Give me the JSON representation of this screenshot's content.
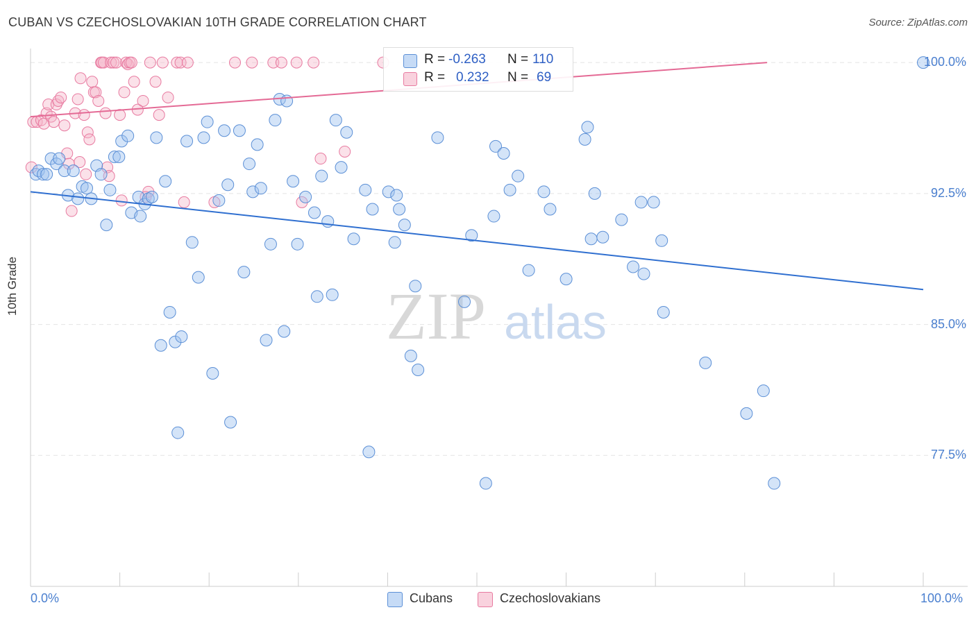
{
  "title": "CUBAN VS CZECHOSLOVAKIAN 10TH GRADE CORRELATION CHART",
  "source": "Source: ZipAtlas.com",
  "watermark": {
    "zip": "ZIP",
    "atlas": "atlas"
  },
  "colors": {
    "blue": "#5b8fd6",
    "blue_fill": "rgba(160,195,240,0.45)",
    "blue_line": "#2f6fd0",
    "pink": "#e87aa0",
    "pink_fill": "rgba(245,180,200,0.4)",
    "pink_line": "#e46a95"
  },
  "legend": {
    "blue": {
      "r_label": "R =",
      "r_value": "-0.263",
      "n_label": "N =",
      "n_value": "110"
    },
    "pink": {
      "r_label": "R =",
      "r_value": "0.232",
      "n_label": "N =",
      "n_value": "69"
    }
  },
  "bottom_legend": {
    "cubans": "Cubans",
    "czechoslovakians": "Czechoslovakians"
  },
  "chart_data": {
    "type": "scatter",
    "title": "CUBAN VS CZECHOSLOVAKIAN 10TH GRADE CORRELATION CHART",
    "xlabel": "",
    "ylabel": "10th Grade",
    "xlim": [
      0,
      100
    ],
    "ylim": [
      70.0,
      100.8
    ],
    "x_tick_labels": [
      "0.0%",
      "100.0%"
    ],
    "y_ticks": [
      77.5,
      85.0,
      92.5,
      100.0
    ],
    "y_tick_labels": [
      "77.5%",
      "85.0%",
      "92.5%",
      "100.0%"
    ],
    "series": [
      {
        "name": "Cubans",
        "trend": {
          "x": [
            0,
            100
          ],
          "y": [
            92.6,
            87.0
          ]
        },
        "points": [
          [
            0.6,
            93.6
          ],
          [
            0.9,
            93.8
          ],
          [
            1.4,
            93.6
          ],
          [
            1.8,
            93.6
          ],
          [
            2.3,
            94.5
          ],
          [
            2.9,
            94.2
          ],
          [
            3.2,
            94.5
          ],
          [
            3.8,
            93.8
          ],
          [
            4.2,
            92.4
          ],
          [
            4.8,
            93.8
          ],
          [
            5.3,
            92.2
          ],
          [
            5.8,
            92.9
          ],
          [
            6.3,
            92.8
          ],
          [
            6.8,
            92.2
          ],
          [
            7.4,
            94.1
          ],
          [
            7.9,
            93.6
          ],
          [
            8.5,
            90.7
          ],
          [
            8.9,
            92.7
          ],
          [
            9.4,
            94.6
          ],
          [
            9.9,
            94.6
          ],
          [
            10.2,
            95.5
          ],
          [
            10.9,
            95.8
          ],
          [
            11.3,
            91.4
          ],
          [
            12.1,
            92.3
          ],
          [
            12.3,
            91.2
          ],
          [
            12.8,
            91.9
          ],
          [
            13.2,
            92.2
          ],
          [
            13.6,
            92.3
          ],
          [
            14.1,
            95.7
          ],
          [
            14.6,
            83.8
          ],
          [
            15.1,
            93.2
          ],
          [
            15.6,
            85.7
          ],
          [
            16.2,
            84.0
          ],
          [
            16.5,
            78.8
          ],
          [
            16.9,
            84.3
          ],
          [
            17.5,
            95.5
          ],
          [
            18.1,
            89.7
          ],
          [
            18.8,
            87.7
          ],
          [
            19.4,
            95.7
          ],
          [
            19.8,
            96.6
          ],
          [
            20.4,
            82.2
          ],
          [
            21.1,
            92.1
          ],
          [
            21.7,
            96.1
          ],
          [
            22.1,
            93.0
          ],
          [
            22.4,
            79.4
          ],
          [
            23.4,
            96.1
          ],
          [
            23.9,
            88.0
          ],
          [
            24.5,
            94.2
          ],
          [
            24.9,
            92.6
          ],
          [
            25.4,
            95.3
          ],
          [
            25.8,
            92.8
          ],
          [
            26.4,
            84.1
          ],
          [
            26.9,
            89.6
          ],
          [
            27.4,
            96.7
          ],
          [
            27.9,
            97.9
          ],
          [
            28.4,
            84.6
          ],
          [
            28.7,
            97.8
          ],
          [
            29.4,
            93.2
          ],
          [
            29.9,
            89.6
          ],
          [
            30.8,
            92.3
          ],
          [
            31.8,
            91.4
          ],
          [
            32.1,
            86.6
          ],
          [
            32.6,
            93.5
          ],
          [
            33.3,
            90.9
          ],
          [
            33.8,
            86.7
          ],
          [
            34.2,
            96.7
          ],
          [
            34.8,
            94.0
          ],
          [
            35.4,
            96.0
          ],
          [
            36.2,
            89.9
          ],
          [
            37.5,
            92.7
          ],
          [
            37.9,
            77.7
          ],
          [
            38.3,
            91.6
          ],
          [
            40.1,
            92.6
          ],
          [
            40.8,
            89.7
          ],
          [
            41.0,
            92.4
          ],
          [
            41.3,
            91.6
          ],
          [
            41.9,
            90.7
          ],
          [
            42.6,
            83.2
          ],
          [
            43.1,
            87.2
          ],
          [
            43.4,
            82.4
          ],
          [
            45.6,
            95.7
          ],
          [
            48.6,
            86.3
          ],
          [
            49.4,
            90.1
          ],
          [
            51.0,
            75.9
          ],
          [
            51.9,
            91.2
          ],
          [
            52.1,
            95.2
          ],
          [
            53.0,
            94.8
          ],
          [
            53.7,
            92.7
          ],
          [
            54.6,
            93.5
          ],
          [
            55.8,
            88.1
          ],
          [
            57.5,
            92.6
          ],
          [
            58.2,
            91.6
          ],
          [
            60.0,
            87.6
          ],
          [
            62.1,
            95.6
          ],
          [
            62.4,
            96.3
          ],
          [
            62.8,
            89.9
          ],
          [
            63.2,
            92.5
          ],
          [
            64.1,
            90.0
          ],
          [
            66.2,
            91.0
          ],
          [
            67.5,
            88.3
          ],
          [
            68.4,
            92.0
          ],
          [
            68.7,
            87.9
          ],
          [
            69.8,
            92.0
          ],
          [
            70.7,
            89.8
          ],
          [
            70.9,
            85.7
          ],
          [
            75.6,
            82.8
          ],
          [
            80.2,
            79.9
          ],
          [
            82.1,
            81.2
          ],
          [
            83.3,
            75.9
          ],
          [
            100.0,
            100.0
          ]
        ]
      },
      {
        "name": "Czechoslovakians",
        "trend": {
          "x": [
            0,
            82.5
          ],
          "y": [
            96.9,
            100.0
          ]
        },
        "points": [
          [
            0.3,
            96.6
          ],
          [
            0.7,
            96.6
          ],
          [
            1.2,
            96.7
          ],
          [
            1.5,
            96.5
          ],
          [
            1.8,
            97.1
          ],
          [
            2.0,
            97.6
          ],
          [
            2.3,
            96.9
          ],
          [
            2.6,
            96.6
          ],
          [
            2.9,
            97.6
          ],
          [
            3.1,
            97.8
          ],
          [
            3.4,
            98.0
          ],
          [
            3.8,
            96.4
          ],
          [
            4.1,
            94.8
          ],
          [
            4.3,
            94.2
          ],
          [
            4.6,
            91.5
          ],
          [
            5.0,
            97.1
          ],
          [
            5.3,
            97.9
          ],
          [
            5.6,
            99.1
          ],
          [
            6.0,
            97.0
          ],
          [
            6.2,
            93.6
          ],
          [
            6.4,
            96.0
          ],
          [
            6.6,
            95.6
          ],
          [
            6.9,
            98.9
          ],
          [
            7.1,
            98.3
          ],
          [
            7.3,
            98.3
          ],
          [
            7.6,
            97.8
          ],
          [
            7.9,
            100.0
          ],
          [
            8.0,
            100.0
          ],
          [
            8.2,
            100.0
          ],
          [
            8.4,
            97.1
          ],
          [
            8.6,
            94.0
          ],
          [
            8.8,
            93.5
          ],
          [
            9.0,
            100.0
          ],
          [
            9.3,
            100.0
          ],
          [
            9.6,
            100.0
          ],
          [
            10.0,
            97.0
          ],
          [
            10.2,
            92.1
          ],
          [
            10.5,
            98.3
          ],
          [
            10.7,
            100.0
          ],
          [
            10.9,
            99.9
          ],
          [
            11.1,
            100.0
          ],
          [
            11.3,
            100.0
          ],
          [
            11.6,
            98.9
          ],
          [
            12.0,
            97.3
          ],
          [
            12.6,
            97.8
          ],
          [
            13.2,
            92.6
          ],
          [
            13.4,
            100.0
          ],
          [
            14.0,
            98.9
          ],
          [
            14.4,
            97.0
          ],
          [
            14.8,
            100.0
          ],
          [
            15.4,
            98.0
          ],
          [
            16.4,
            100.0
          ],
          [
            16.8,
            100.0
          ],
          [
            17.2,
            92.0
          ],
          [
            17.6,
            100.0
          ],
          [
            20.6,
            92.0
          ],
          [
            22.9,
            100.0
          ],
          [
            24.8,
            100.0
          ],
          [
            27.2,
            100.0
          ],
          [
            28.1,
            100.0
          ],
          [
            29.8,
            100.0
          ],
          [
            30.4,
            92.0
          ],
          [
            31.7,
            100.0
          ],
          [
            32.5,
            94.5
          ],
          [
            35.2,
            94.9
          ],
          [
            39.5,
            100.0
          ],
          [
            0.1,
            94.0
          ],
          [
            5.5,
            94.3
          ],
          [
            12.9,
            92.3
          ]
        ]
      }
    ]
  }
}
